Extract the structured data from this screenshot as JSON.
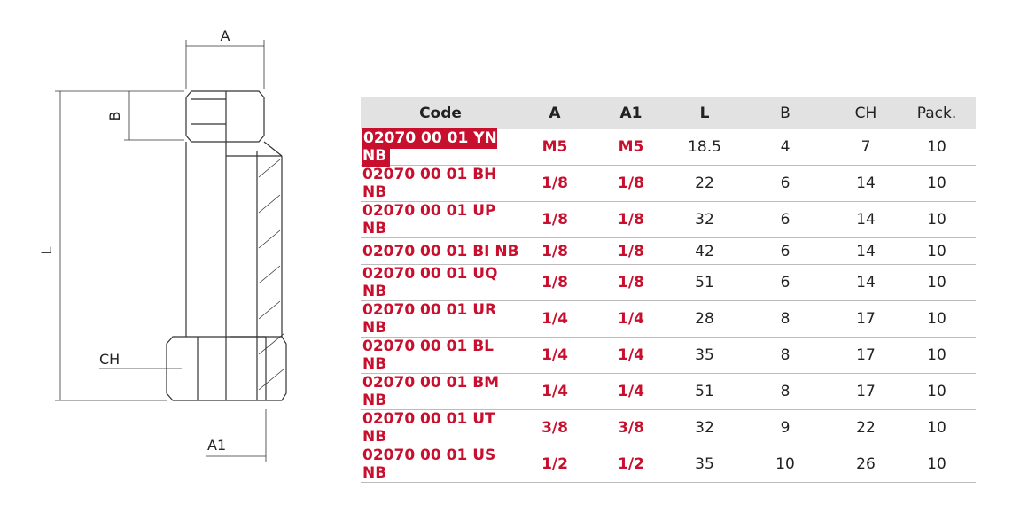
{
  "drawing": {
    "labels": {
      "a": "A",
      "b": "B",
      "l": "L",
      "ch": "CH",
      "a1": "A1"
    }
  },
  "table": {
    "headers": [
      "Code",
      "A",
      "A1",
      "L",
      "B",
      "CH",
      "Pack."
    ],
    "rows": [
      [
        "02070 00 01 YN NB",
        "M5",
        "M5",
        18.5,
        4,
        7,
        10
      ],
      [
        "02070 00 01 BH NB",
        "1/8",
        "1/8",
        22,
        6,
        14,
        10
      ],
      [
        "02070 00 01 UP NB",
        "1/8",
        "1/8",
        32,
        6,
        14,
        10
      ],
      [
        "02070 00 01 BI NB",
        "1/8",
        "1/8",
        42,
        6,
        14,
        10
      ],
      [
        "02070 00 01 UQ NB",
        "1/8",
        "1/8",
        51,
        6,
        14,
        10
      ],
      [
        "02070 00 01 UR NB",
        "1/4",
        "1/4",
        28,
        8,
        17,
        10
      ],
      [
        "02070 00 01 BL NB",
        "1/4",
        "1/4",
        35,
        8,
        17,
        10
      ],
      [
        "02070 00 01 BM NB",
        "1/4",
        "1/4",
        51,
        8,
        17,
        10
      ],
      [
        "02070 00 01 UT NB",
        "3/8",
        "3/8",
        32,
        9,
        22,
        10
      ],
      [
        "02070 00 01 US NB",
        "1/2",
        "1/2",
        35,
        10,
        26,
        10
      ]
    ]
  }
}
